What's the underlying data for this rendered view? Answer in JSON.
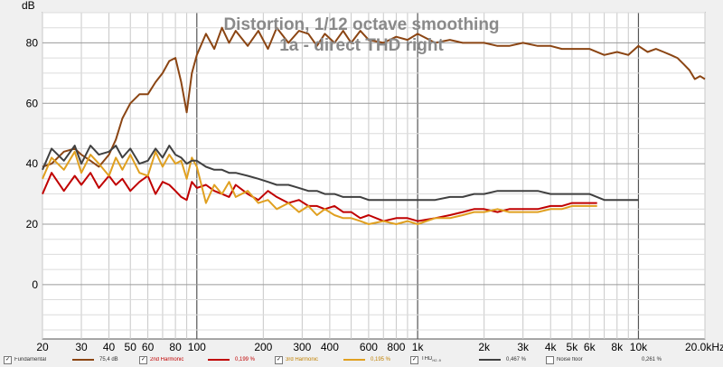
{
  "chart_data": {
    "type": "line",
    "title": "Distortion, 1/12 octave smoothing",
    "subtitle": "1a - direct THD right",
    "ylabel": "dB",
    "xscale": "log",
    "xlim": [
      20,
      20000
    ],
    "ylim": [
      -18,
      90
    ],
    "grid": true,
    "x_ticks": [
      {
        "v": 20,
        "label": "20"
      },
      {
        "v": 30,
        "label": "30"
      },
      {
        "v": 40,
        "label": "40"
      },
      {
        "v": 50,
        "label": "50"
      },
      {
        "v": 60,
        "label": "60"
      },
      {
        "v": 80,
        "label": "80"
      },
      {
        "v": 100,
        "label": "100"
      },
      {
        "v": 200,
        "label": "200"
      },
      {
        "v": 300,
        "label": "300"
      },
      {
        "v": 400,
        "label": "400"
      },
      {
        "v": 600,
        "label": "600"
      },
      {
        "v": 800,
        "label": "800"
      },
      {
        "v": 1000,
        "label": "1k"
      },
      {
        "v": 2000,
        "label": "2k"
      },
      {
        "v": 3000,
        "label": "3k"
      },
      {
        "v": 4000,
        "label": "4k"
      },
      {
        "v": 5000,
        "label": "5k"
      },
      {
        "v": 6000,
        "label": "6k"
      },
      {
        "v": 8000,
        "label": "8k"
      },
      {
        "v": 10000,
        "label": "10k"
      },
      {
        "v": 20000,
        "label": "20,0kHz"
      }
    ],
    "y_ticks": [
      {
        "v": 0,
        "label": "0"
      },
      {
        "v": 20,
        "label": "20"
      },
      {
        "v": 40,
        "label": "40"
      },
      {
        "v": 60,
        "label": "60"
      },
      {
        "v": 80,
        "label": "80"
      }
    ],
    "series": [
      {
        "name": "Fundamental",
        "color": "#8b4513",
        "x": [
          20,
          22,
          25,
          28,
          30,
          33,
          36,
          40,
          43,
          46,
          50,
          55,
          60,
          65,
          70,
          75,
          80,
          85,
          90,
          95,
          100,
          110,
          120,
          130,
          140,
          150,
          170,
          190,
          210,
          230,
          260,
          290,
          320,
          350,
          380,
          420,
          460,
          500,
          550,
          600,
          700,
          800,
          900,
          1000,
          1200,
          1400,
          1600,
          1800,
          2000,
          2300,
          2600,
          3000,
          3500,
          4000,
          4500,
          5000,
          6000,
          7000,
          8000,
          9000,
          10000,
          11000,
          12000,
          13000,
          14000,
          15000,
          16000,
          17000,
          18000,
          19000,
          20000
        ],
        "y": [
          39,
          40,
          44,
          45,
          43,
          41,
          39,
          43,
          48,
          55,
          60,
          63,
          63,
          67,
          70,
          74,
          75,
          67,
          57,
          70,
          76,
          83,
          78,
          85,
          80,
          84,
          79,
          84,
          78,
          85,
          80,
          84,
          83,
          79,
          83,
          80,
          84,
          80,
          84,
          81,
          80,
          82,
          81,
          83,
          80,
          81,
          80,
          80,
          80,
          79,
          79,
          80,
          79,
          79,
          78,
          78,
          78,
          76,
          77,
          76,
          79,
          77,
          78,
          77,
          76,
          75,
          73,
          71,
          68,
          69,
          68
        ]
      },
      {
        "name": "2nd Harmonic",
        "color": "#c00000",
        "x": [
          20,
          22,
          25,
          28,
          30,
          33,
          36,
          40,
          43,
          46,
          50,
          55,
          60,
          65,
          70,
          75,
          80,
          85,
          90,
          95,
          100,
          110,
          120,
          130,
          140,
          150,
          170,
          190,
          210,
          230,
          260,
          290,
          320,
          350,
          380,
          420,
          460,
          500,
          550,
          600,
          700,
          800,
          900,
          1000,
          1200,
          1400,
          1600,
          1800,
          2000,
          2300,
          2600,
          3000,
          3500,
          4000,
          4500,
          5000,
          6000,
          6500
        ],
        "y": [
          30,
          37,
          31,
          36,
          33,
          37,
          32,
          36,
          33,
          35,
          31,
          34,
          36,
          30,
          34,
          33,
          31,
          29,
          28,
          34,
          32,
          33,
          31,
          30,
          29,
          33,
          30,
          28,
          31,
          29,
          27,
          28,
          26,
          26,
          25,
          26,
          24,
          24,
          22,
          23,
          21,
          22,
          22,
          21,
          22,
          23,
          24,
          25,
          25,
          24,
          25,
          25,
          25,
          26,
          26,
          27,
          27,
          27
        ]
      },
      {
        "name": "3rd Harmonic",
        "color": "#e0a020",
        "x": [
          20,
          22,
          25,
          28,
          30,
          33,
          36,
          40,
          43,
          46,
          50,
          55,
          60,
          65,
          70,
          75,
          80,
          85,
          90,
          95,
          100,
          110,
          120,
          130,
          140,
          150,
          170,
          190,
          210,
          230,
          260,
          290,
          320,
          350,
          380,
          420,
          460,
          500,
          550,
          600,
          700,
          800,
          900,
          1000,
          1200,
          1400,
          1600,
          1800,
          2000,
          2300,
          2600,
          3000,
          3500,
          4000,
          4500,
          5000,
          6000,
          6500
        ],
        "y": [
          35,
          42,
          38,
          44,
          37,
          43,
          40,
          36,
          42,
          38,
          43,
          37,
          36,
          44,
          39,
          43,
          40,
          41,
          35,
          42,
          39,
          27,
          33,
          30,
          34,
          29,
          31,
          27,
          28,
          25,
          27,
          24,
          26,
          23,
          25,
          23,
          22,
          22,
          21,
          20,
          21,
          20,
          21,
          20,
          22,
          22,
          23,
          24,
          24,
          25,
          24,
          24,
          24,
          25,
          25,
          26,
          26,
          26
        ]
      },
      {
        "name": "THD",
        "color": "#404040",
        "x": [
          20,
          22,
          25,
          28,
          30,
          33,
          36,
          40,
          43,
          46,
          50,
          55,
          60,
          65,
          70,
          75,
          80,
          85,
          90,
          95,
          100,
          110,
          120,
          130,
          140,
          150,
          170,
          190,
          210,
          230,
          260,
          290,
          320,
          350,
          380,
          420,
          460,
          500,
          550,
          600,
          700,
          800,
          900,
          1000,
          1200,
          1400,
          1600,
          1800,
          2000,
          2300,
          2600,
          3000,
          3500,
          4000,
          4500,
          5000,
          6000,
          7000,
          8000,
          9000,
          10000
        ],
        "y": [
          38,
          45,
          41,
          46,
          40,
          46,
          43,
          44,
          46,
          42,
          45,
          40,
          41,
          45,
          42,
          46,
          43,
          42,
          40,
          41,
          41,
          39,
          38,
          38,
          37,
          37,
          36,
          35,
          34,
          33,
          33,
          32,
          31,
          31,
          30,
          30,
          29,
          29,
          29,
          28,
          28,
          28,
          28,
          28,
          28,
          29,
          29,
          30,
          30,
          31,
          31,
          31,
          31,
          30,
          30,
          30,
          30,
          28,
          28,
          28,
          28
        ]
      }
    ]
  },
  "legend": {
    "items": [
      {
        "key": "fundamental",
        "checked": true,
        "label": "Fundamental",
        "value": "75,4 dB",
        "color": "#8b4513"
      },
      {
        "key": "h2",
        "checked": true,
        "label": "2nd Harmonic",
        "value": "0,199 %",
        "color": "#c00000"
      },
      {
        "key": "h3",
        "checked": true,
        "label": "3rd Harmonic",
        "value": "0,195 %",
        "color": "#e0a020"
      },
      {
        "key": "thd",
        "checked": true,
        "label": "THD",
        "sub": "H2..9",
        "value": "0,467 %",
        "color": "#404040"
      },
      {
        "key": "noise",
        "checked": false,
        "label": "Noise floor",
        "value": "0,261 %",
        "color": "#999999"
      }
    ]
  }
}
